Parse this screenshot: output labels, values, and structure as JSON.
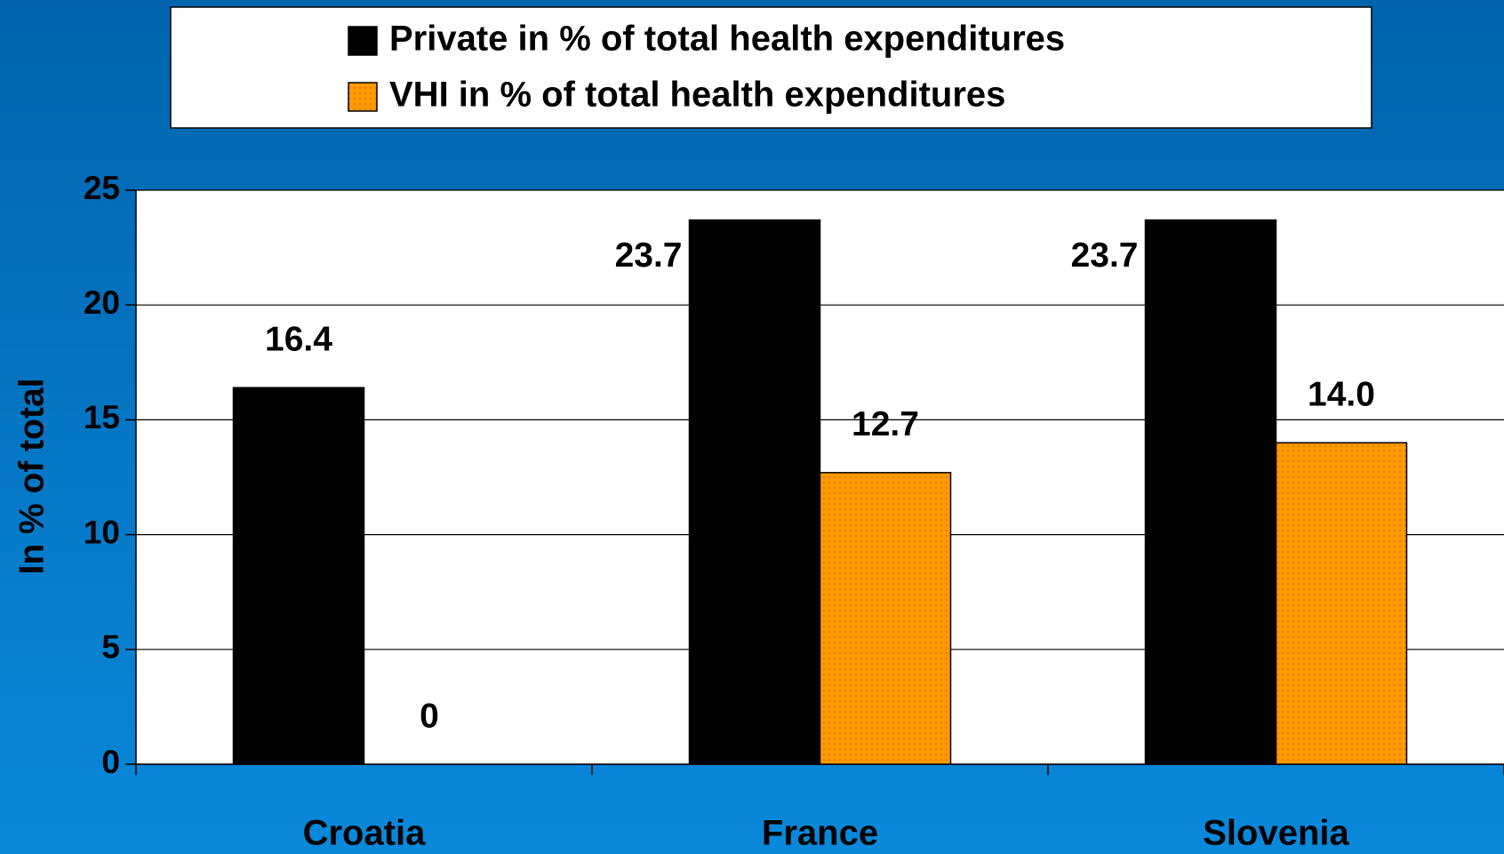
{
  "chart_data": {
    "type": "bar",
    "categories": [
      "Croatia",
      "France",
      "Slovenia"
    ],
    "series": [
      {
        "name": "Private in % of total health expenditures",
        "color": "#000000",
        "values": [
          16.4,
          23.7,
          23.7
        ]
      },
      {
        "name": "VHI in % of total health expenditures",
        "color": "#ff9900",
        "values": [
          0,
          12.7,
          14.0
        ],
        "value_labels": [
          "0",
          "12.7",
          "14.0"
        ]
      }
    ],
    "y_label": "In % of total",
    "ylim": [
      0,
      25
    ],
    "yticks": [
      0,
      5,
      10,
      15,
      20,
      25
    ],
    "grid": true
  }
}
